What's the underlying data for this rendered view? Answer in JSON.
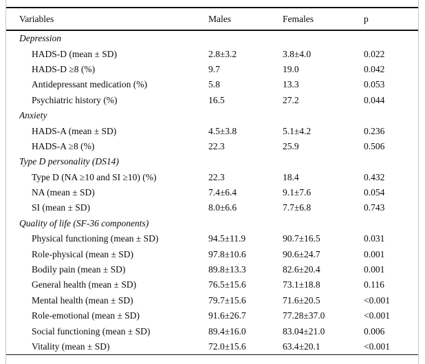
{
  "table": {
    "columns": {
      "variables": "Variables",
      "males": "Males",
      "females": "Females",
      "p": "p"
    },
    "rows": [
      {
        "type": "section",
        "label": "Depression",
        "males": "",
        "females": "",
        "p": ""
      },
      {
        "type": "data",
        "label": "HADS-D (mean ± SD)",
        "males": "2.8±3.2",
        "females": "3.8±4.0",
        "p": "0.022"
      },
      {
        "type": "data",
        "label": "HADS-D ≥8 (%)",
        "males": "9.7",
        "females": "19.0",
        "p": "0.042"
      },
      {
        "type": "data",
        "label": "Antidepressant medication (%)",
        "males": "5.8",
        "females": "13.3",
        "p": "0.053"
      },
      {
        "type": "data",
        "label": "Psychiatric history (%)",
        "males": "16.5",
        "females": "27.2",
        "p": "0.044"
      },
      {
        "type": "section",
        "label": "Anxiety",
        "males": "",
        "females": "",
        "p": ""
      },
      {
        "type": "data",
        "label": "HADS-A (mean ± SD)",
        "males": "4.5±3.8",
        "females": "5.1±4.2",
        "p": "0.236"
      },
      {
        "type": "data",
        "label": "HADS-A ≥8 (%)",
        "males": "22.3",
        "females": "25.9",
        "p": "0.506"
      },
      {
        "type": "section",
        "label": "Type D personality (DS14)",
        "males": "",
        "females": "",
        "p": ""
      },
      {
        "type": "data",
        "label": "Type D (NA ≥10 and SI ≥10) (%)",
        "males": "22.3",
        "females": "18.4",
        "p": "0.432"
      },
      {
        "type": "data",
        "label": "NA (mean ± SD)",
        "males": "7.4±6.4",
        "females": "9.1±7.6",
        "p": "0.054"
      },
      {
        "type": "data",
        "label": "SI (mean ± SD)",
        "males": "8.0±6.6",
        "females": "7.7±6.8",
        "p": "0.743"
      },
      {
        "type": "section",
        "label": "Quality of life (SF-36 components)",
        "males": "",
        "females": "",
        "p": ""
      },
      {
        "type": "data",
        "label": "Physical functioning (mean ± SD)",
        "males": "94.5±11.9",
        "females": "90.7±16.5",
        "p": "0.031"
      },
      {
        "type": "data",
        "label": "Role-physical (mean ± SD)",
        "males": "97.8±10.6",
        "females": "90.6±24.7",
        "p": "0.001"
      },
      {
        "type": "data",
        "label": "Bodily pain (mean ± SD)",
        "males": "89.8±13.3",
        "females": "82.6±20.4",
        "p": "0.001"
      },
      {
        "type": "data",
        "label": "General health (mean ± SD)",
        "males": "76.5±15.6",
        "females": "73.1±18.8",
        "p": "0.116"
      },
      {
        "type": "data",
        "label": "Mental health (mean ± SD)",
        "males": "79.7±15.6",
        "females": "71.6±20.5",
        "p": "<0.001"
      },
      {
        "type": "data",
        "label": "Role-emotional (mean ± SD)",
        "males": "91.6±26.7",
        "females": "77.28±37.0",
        "p": "<0.001"
      },
      {
        "type": "data",
        "label": "Social functioning (mean ± SD)",
        "males": "89.4±16.0",
        "females": "83.04±21.0",
        "p": "0.006"
      },
      {
        "type": "data",
        "label": "Vitality (mean ± SD)",
        "males": "72.0±15.6",
        "females": "63.4±20.1",
        "p": "<0.001"
      }
    ]
  }
}
